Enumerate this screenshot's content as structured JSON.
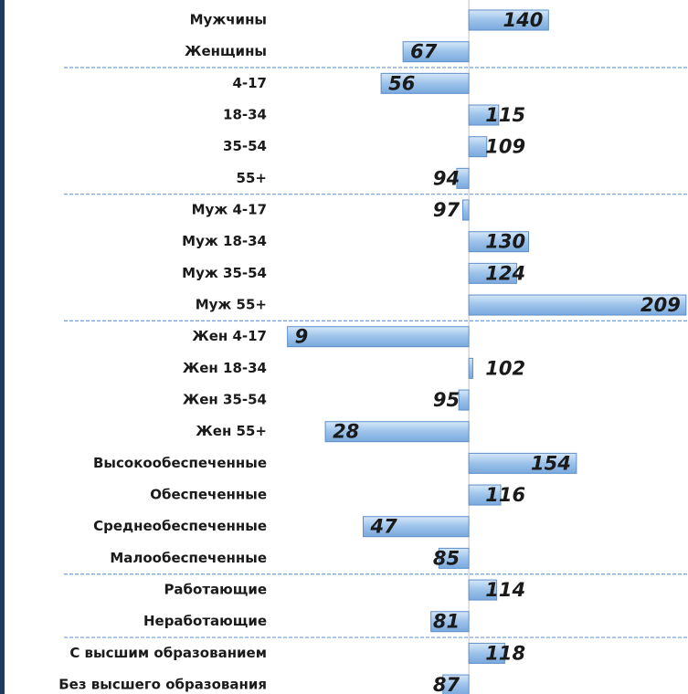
{
  "chart_data": {
    "type": "bar",
    "orientation": "horizontal",
    "baseline": 100,
    "xlim": [
      0,
      210
    ],
    "color": "#9cc2ea",
    "categories": [
      "Мужчины",
      "Женщины",
      "4-17",
      "18-34",
      "35-54",
      "55+",
      "Муж 4-17",
      "Муж 18-34",
      "Муж 35-54",
      "Муж 55+",
      "Жен 4-17",
      "Жен 18-34",
      "Жен 35-54",
      "Жен 55+",
      "Высокообеспеченные",
      "Обеспеченные",
      "Среднеобеспеченные",
      "Малообеспеченные",
      "Работающие",
      "Неработающие",
      "С высшим образованием",
      "Без высшего образования"
    ],
    "values": [
      140,
      67,
      56,
      115,
      109,
      94,
      97,
      130,
      124,
      209,
      9,
      102,
      95,
      28,
      154,
      116,
      47,
      85,
      114,
      81,
      118,
      87
    ]
  }
}
